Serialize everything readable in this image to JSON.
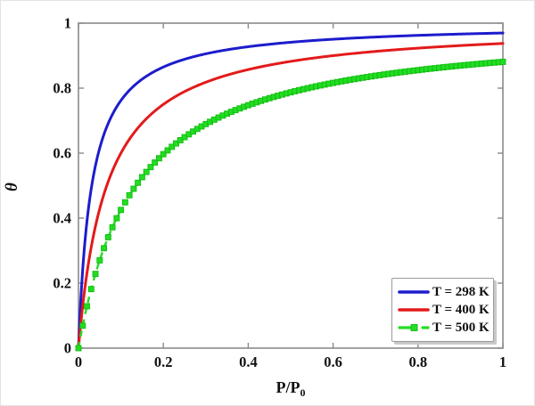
{
  "figure": {
    "background": "#ffffff",
    "border_color": "#e3e3e3"
  },
  "chart_data": {
    "type": "line",
    "title": "",
    "xlabel": "P/P₀",
    "xlabel_main": "P/P",
    "xlabel_sub": "0",
    "ylabel": "θ",
    "xlim": [
      0,
      1
    ],
    "ylim": [
      0,
      1
    ],
    "xticks": [
      "0",
      "0.2",
      "0.4",
      "0.6",
      "0.8",
      "1"
    ],
    "yticks": [
      "0",
      "0.2",
      "0.4",
      "0.6",
      "0.8",
      "1"
    ],
    "grid": false,
    "frame": "box-with-inward-ticks",
    "axis_color": "#8a8a8a",
    "tick_label_color": "#111111",
    "model": "Langmuir isotherm: theta = K*(P/P0)/(1 + K*(P/P0))",
    "samples_x": [
      0,
      0.02,
      0.05,
      0.1,
      0.15,
      0.2,
      0.3,
      0.4,
      0.5,
      0.6,
      0.7,
      0.8,
      0.9,
      1.0
    ],
    "series": [
      {
        "name": "T = 298 K",
        "color": "#1c1ccd",
        "style": "solid",
        "line_width": 3,
        "K": 32,
        "theta": [
          0,
          0.39,
          0.615,
          0.762,
          0.828,
          0.865,
          0.906,
          0.928,
          0.941,
          0.95,
          0.957,
          0.962,
          0.966,
          0.97
        ]
      },
      {
        "name": "T = 400 K",
        "color": "#e41a1a",
        "style": "solid",
        "line_width": 3,
        "K": 15,
        "theta": [
          0,
          0.231,
          0.429,
          0.6,
          0.692,
          0.75,
          0.818,
          0.857,
          0.882,
          0.9,
          0.913,
          0.923,
          0.931,
          0.938
        ]
      },
      {
        "name": "T = 500 K",
        "color": "#22dd22",
        "marker_edge_color": "#11bb11",
        "style": "dashed",
        "line_width": 2.4,
        "marker": "square",
        "marker_size": 6,
        "marker_x_step": 0.01,
        "K": 7.4,
        "theta": [
          0,
          0.129,
          0.27,
          0.425,
          0.526,
          0.597,
          0.689,
          0.747,
          0.787,
          0.816,
          0.838,
          0.855,
          0.869,
          0.881
        ]
      }
    ],
    "legend": {
      "position": "lower-right",
      "border_color": "#9a9a9a"
    }
  }
}
